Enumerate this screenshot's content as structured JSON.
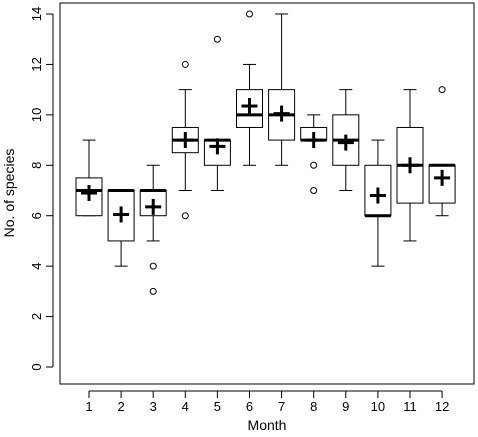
{
  "chart_data": {
    "type": "boxplot",
    "title": "",
    "xlabel": "Month",
    "ylabel": "No. of species",
    "ylim": [
      0,
      14
    ],
    "yticks": [
      0,
      2,
      4,
      6,
      8,
      10,
      12,
      14
    ],
    "grid": false,
    "categories": [
      "1",
      "2",
      "3",
      "4",
      "5",
      "6",
      "7",
      "8",
      "9",
      "10",
      "11",
      "12"
    ],
    "boxes": [
      {
        "month": "1",
        "whisker_low": 6,
        "q1": 6,
        "median": 7,
        "q3": 7.5,
        "whisker_high": 9,
        "mean": 6.9,
        "outliers": []
      },
      {
        "month": "2",
        "whisker_low": 4,
        "q1": 5,
        "median": 7,
        "q3": 7,
        "whisker_high": 7,
        "mean": 6.05,
        "outliers": []
      },
      {
        "month": "3",
        "whisker_low": 5,
        "q1": 6,
        "median": 7,
        "q3": 7,
        "whisker_high": 8,
        "mean": 6.35,
        "outliers": [
          4,
          3
        ]
      },
      {
        "month": "4",
        "whisker_low": 7,
        "q1": 8.5,
        "median": 9,
        "q3": 9.5,
        "whisker_high": 11,
        "mean": 9.0,
        "outliers": [
          12,
          6
        ]
      },
      {
        "month": "5",
        "whisker_low": 7,
        "q1": 8,
        "median": 9,
        "q3": 9,
        "whisker_high": 9,
        "mean": 8.75,
        "outliers": [
          13
        ]
      },
      {
        "month": "6",
        "whisker_low": 8,
        "q1": 9.5,
        "median": 10,
        "q3": 11,
        "whisker_high": 12,
        "mean": 10.35,
        "outliers": [
          14
        ]
      },
      {
        "month": "7",
        "whisker_low": 8,
        "q1": 9,
        "median": 10,
        "q3": 11,
        "whisker_high": 14,
        "mean": 10.05,
        "outliers": []
      },
      {
        "month": "8",
        "whisker_low": 9,
        "q1": 9,
        "median": 9,
        "q3": 9.5,
        "whisker_high": 10,
        "mean": 9.0,
        "outliers": [
          8,
          7
        ]
      },
      {
        "month": "9",
        "whisker_low": 7,
        "q1": 8,
        "median": 9,
        "q3": 10,
        "whisker_high": 11,
        "mean": 8.9,
        "outliers": []
      },
      {
        "month": "10",
        "whisker_low": 4,
        "q1": 6,
        "median": 6,
        "q3": 8,
        "whisker_high": 9,
        "mean": 6.8,
        "outliers": []
      },
      {
        "month": "11",
        "whisker_low": 5,
        "q1": 6.5,
        "median": 8,
        "q3": 9.5,
        "whisker_high": 11,
        "mean": 8.0,
        "outliers": []
      },
      {
        "month": "12",
        "whisker_low": 6,
        "q1": 6.5,
        "median": 8,
        "q3": 8,
        "whisker_high": 8,
        "mean": 7.5,
        "outliers": [
          11
        ]
      }
    ]
  }
}
